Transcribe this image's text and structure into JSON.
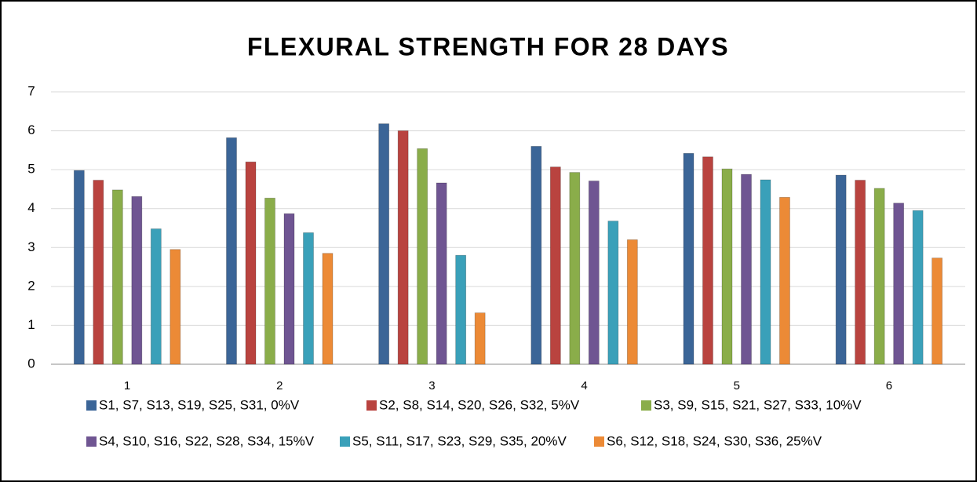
{
  "chart_data": {
    "type": "bar",
    "title": "FLEXURAL STRENGTH FOR 28 DAYS",
    "categories": [
      "1",
      "2",
      "3",
      "4",
      "5",
      "6"
    ],
    "series": [
      {
        "name": "S1, S7, S13, S19, S25, S31, 0%V",
        "color": "#3b6597",
        "values": [
          4.98,
          5.82,
          6.18,
          5.6,
          5.42,
          4.86
        ]
      },
      {
        "name": "S2, S8, S14, S20, S26, S32, 5%V",
        "color": "#b9433f",
        "values": [
          4.73,
          5.2,
          6.0,
          5.07,
          5.33,
          4.73
        ]
      },
      {
        "name": "S3, S9, S15, S21, S27, S33, 10%V",
        "color": "#8aad4a",
        "values": [
          4.48,
          4.27,
          5.54,
          4.93,
          5.02,
          4.52
        ]
      },
      {
        "name": "S4, S10, S16, S22, S28, S34, 15%V",
        "color": "#6f5592",
        "values": [
          4.31,
          3.87,
          4.66,
          4.71,
          4.88,
          4.14
        ]
      },
      {
        "name": "S5, S11, S17, S23, S29, S35, 20%V",
        "color": "#3aa0b9",
        "values": [
          3.48,
          3.38,
          2.8,
          3.68,
          4.74,
          3.95
        ]
      },
      {
        "name": "S6, S12, S18, S24, S30, S36, 25%V",
        "color": "#ec8a36",
        "values": [
          2.95,
          2.85,
          1.32,
          3.2,
          4.29,
          2.73
        ]
      }
    ],
    "ylim": [
      0,
      7
    ],
    "yticks": [
      0,
      1,
      2,
      3,
      4,
      5,
      6,
      7
    ],
    "grid": true,
    "legend": "bottom"
  }
}
